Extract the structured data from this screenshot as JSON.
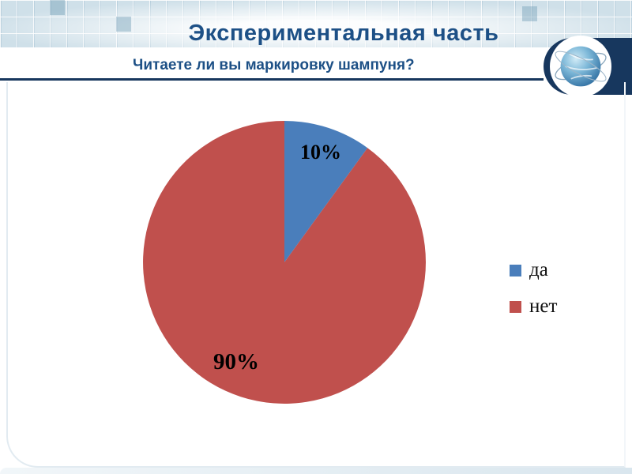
{
  "slide": {
    "title": "Экспериментальная часть",
    "subtitle": "Читаете ли вы маркировку шампуня?"
  },
  "chart_data": {
    "type": "pie",
    "labels": [
      "да",
      "нет"
    ],
    "values": [
      10,
      90
    ],
    "data_labels": [
      "10%",
      "90%"
    ],
    "colors": [
      "#4a7ebb",
      "#c0504d"
    ],
    "start_angle_deg": -90,
    "direction": "clockwise",
    "legend_position": "right",
    "title": "Читаете ли вы маркировку шампуня?"
  },
  "theme": {
    "title_color": "#1d5086",
    "rule_color": "#17375e",
    "band_color": "#cfe0e9"
  }
}
